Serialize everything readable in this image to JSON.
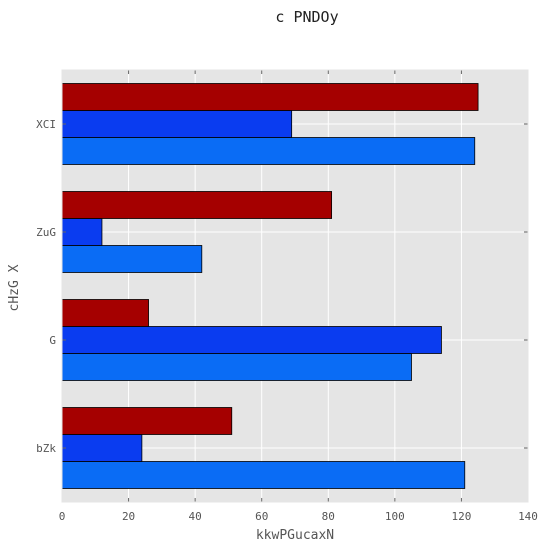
{
  "chart_data": {
    "type": "bar",
    "orientation": "horizontal",
    "title": "c PNDOy",
    "xlabel": "kkwPGucaxN",
    "ylabel": "cHzG X",
    "categories": [
      "bZk",
      "G",
      "ZuG",
      "XCI"
    ],
    "xlim": [
      0,
      140
    ],
    "xticks": [
      0,
      20,
      40,
      60,
      80,
      100,
      120,
      140
    ],
    "grid": true,
    "series": [
      {
        "color": "#0a6cf5",
        "values": [
          121,
          105,
          42,
          124
        ]
      },
      {
        "color": "#0a3cf0",
        "values": [
          24,
          114,
          12,
          69
        ]
      },
      {
        "color": "#a50000",
        "values": [
          51,
          26,
          81,
          125
        ]
      }
    ],
    "background_color": "#e5e5e5"
  }
}
